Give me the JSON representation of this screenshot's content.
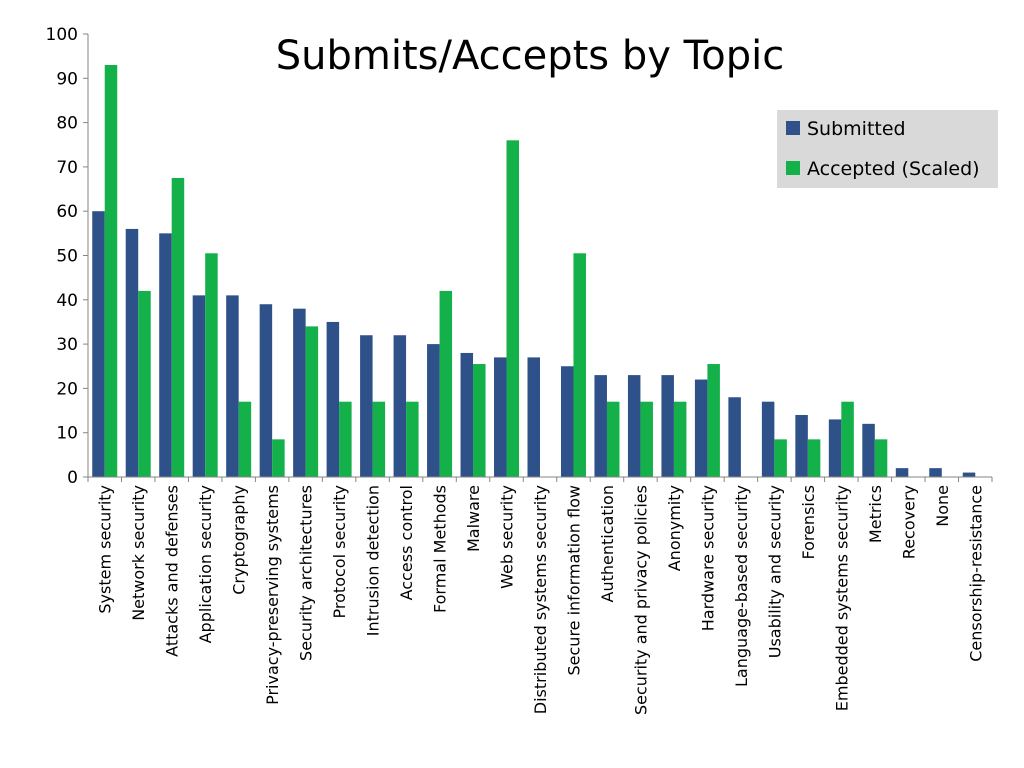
{
  "chart_data": {
    "type": "bar",
    "title": "Submits/Accepts by Topic",
    "xlabel": "",
    "ylabel": "",
    "ylim": [
      0,
      100
    ],
    "yticks": [
      0,
      10,
      20,
      30,
      40,
      50,
      60,
      70,
      80,
      90,
      100
    ],
    "grid": false,
    "legend_position": "top-right",
    "categories": [
      "System security",
      "Network security",
      "Attacks and defenses",
      "Application security",
      "Cryptography",
      "Privacy-preserving systems",
      "Security architectures",
      "Protocol security",
      "Intrusion detection",
      "Access control",
      "Formal Methods",
      "Malware",
      "Web security",
      "Distributed systems security",
      "Secure information flow",
      "Authentication",
      "Security and privacy policies",
      "Anonymity",
      "Hardware security",
      "Language-based security",
      "Usability and security",
      "Forensics",
      "Embedded systems security",
      "Metrics",
      "Recovery",
      "None",
      "Censorship-resistance"
    ],
    "series": [
      {
        "name": "Submitted",
        "color": "#2E5189",
        "values": [
          60,
          56,
          55,
          41,
          41,
          39,
          38,
          35,
          32,
          32,
          30,
          28,
          27,
          27,
          25,
          23,
          23,
          23,
          22,
          18,
          17,
          14,
          13,
          12,
          2,
          2,
          1
        ]
      },
      {
        "name": "Accepted (Scaled)",
        "color": "#14B04A",
        "values": [
          93,
          42,
          67.5,
          50.5,
          17,
          8.5,
          34,
          17,
          17,
          17,
          42,
          25.5,
          76,
          0,
          50.5,
          17,
          17,
          17,
          25.5,
          0,
          8.5,
          8.5,
          17,
          8.5,
          0,
          0,
          0
        ]
      }
    ]
  }
}
